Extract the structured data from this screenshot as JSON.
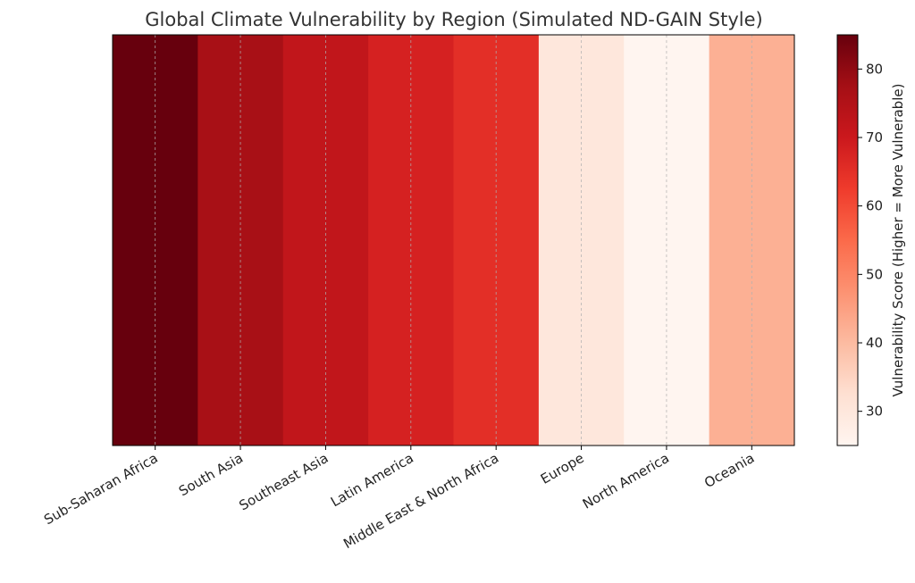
{
  "chart_data": {
    "type": "heatmap",
    "title": "Global Climate Vulnerability by Region (Simulated ND-GAIN Style)",
    "categories": [
      "Sub-Saharan Africa",
      "South Asia",
      "Southeast Asia",
      "Latin America",
      "Middle East & North Africa",
      "Europe",
      "North America",
      "Oceania"
    ],
    "values": [
      85,
      77,
      72,
      68,
      65,
      30,
      25,
      42
    ],
    "colorbar": {
      "label": "Vulnerability Score (Higher = More Vulnerable)",
      "vmin": 25,
      "vmax": 85,
      "ticks": [
        30,
        40,
        50,
        60,
        70,
        80
      ],
      "colormap": "Reds"
    },
    "grid": true,
    "grid_style": "dashed vertical at category centers"
  }
}
